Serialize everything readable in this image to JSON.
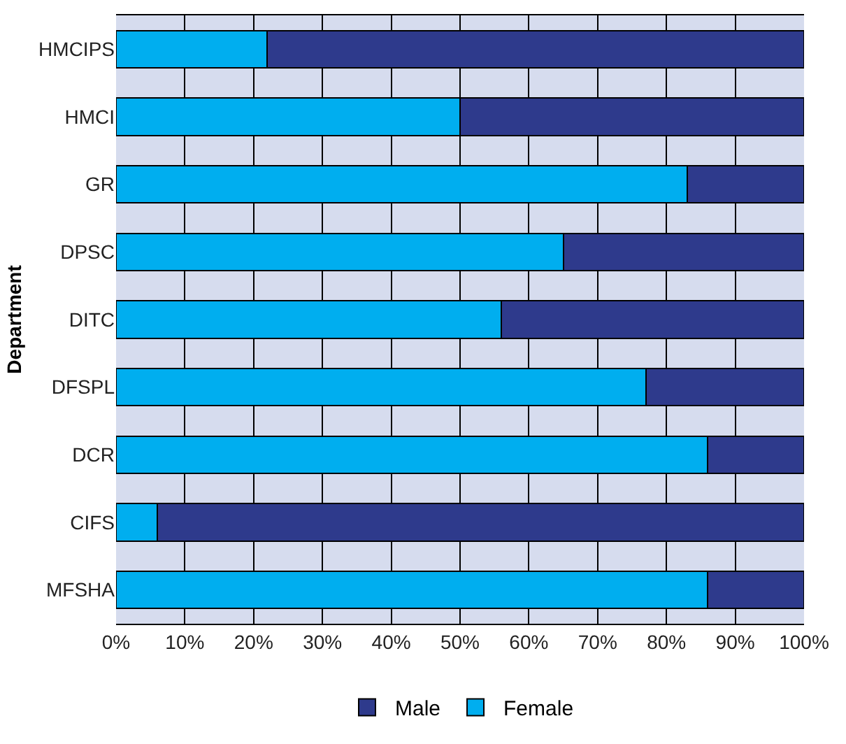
{
  "chart_data": {
    "type": "bar",
    "orientation": "horizontal",
    "stacked": true,
    "ylabel": "Department",
    "categories": [
      "HMCIPS",
      "HMCI",
      "GR",
      "DPSC",
      "DITC",
      "DFSPL",
      "DCR",
      "CIFS",
      "MFSHA"
    ],
    "series": [
      {
        "name": "Female",
        "color": "#00aeef",
        "values": [
          22,
          50,
          83,
          65,
          56,
          77,
          86,
          6,
          86
        ]
      },
      {
        "name": "Male",
        "color": "#2e3a8c",
        "values": [
          78,
          50,
          17,
          35,
          44,
          23,
          14,
          94,
          14
        ]
      }
    ],
    "xlim": [
      0,
      100
    ],
    "xticks": [
      {
        "value": 0,
        "label": "0%"
      },
      {
        "value": 10,
        "label": "10%"
      },
      {
        "value": 20,
        "label": "20%"
      },
      {
        "value": 30,
        "label": "30%"
      },
      {
        "value": 40,
        "label": "40%"
      },
      {
        "value": 50,
        "label": "50%"
      },
      {
        "value": 60,
        "label": "60%"
      },
      {
        "value": 70,
        "label": "70%"
      },
      {
        "value": 80,
        "label": "80%"
      },
      {
        "value": 90,
        "label": "90%"
      },
      {
        "value": 100,
        "label": "100%"
      }
    ],
    "grid": "x",
    "legend": "bottom"
  }
}
